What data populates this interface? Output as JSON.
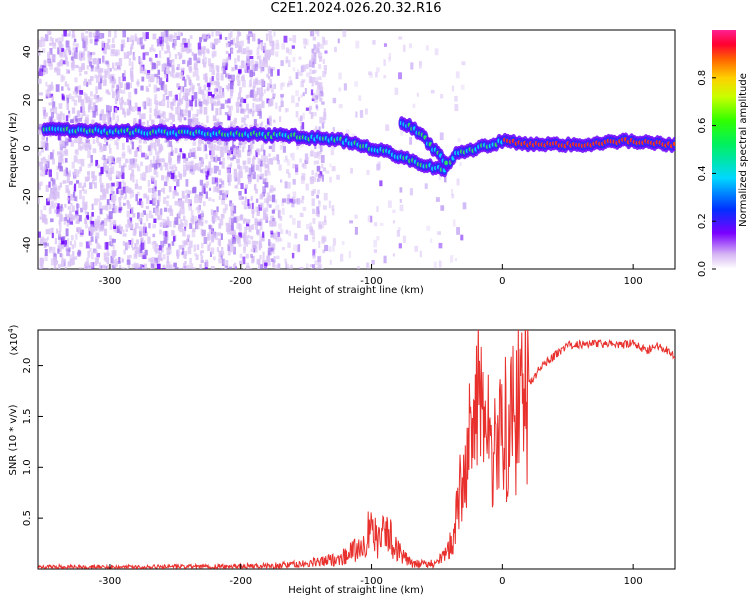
{
  "title": "C2E1.2024.026.20.32.R16",
  "chart_data": [
    {
      "type": "heatmap",
      "xlabel": "Height of straight line (km)",
      "ylabel": "Frequency (Hz)",
      "xlim": [
        -355,
        132
      ],
      "ylim": [
        -50,
        49
      ],
      "xticks": [
        -300,
        -200,
        -100,
        0,
        100
      ],
      "yticks": [
        -40,
        -20,
        0,
        20,
        40
      ],
      "colorbar": {
        "label": "Normalized spectral amplitude",
        "range": [
          0,
          1
        ],
        "ticks": [
          "0.0",
          "0.2",
          "0.4",
          "0.6",
          "0.8"
        ]
      },
      "ridge": {
        "x": [
          -350,
          -300,
          -250,
          -200,
          -160,
          -120,
          -100,
          -80,
          -60,
          -45,
          -35,
          -20,
          -5,
          0,
          20,
          60,
          95,
          132
        ],
        "y": [
          8,
          7,
          6.5,
          6,
          5,
          3,
          0,
          -3,
          -7,
          -9,
          -2,
          0,
          2,
          3,
          1.5,
          1.5,
          3,
          1.5
        ]
      },
      "secondary_branch": {
        "x": [
          -77,
          -70,
          -62,
          -55,
          -48,
          -42
        ],
        "y": [
          10,
          9,
          6,
          1,
          -3,
          -6
        ]
      },
      "grid": false
    },
    {
      "type": "line",
      "xlabel": "Height of straight line (km)",
      "ylabel": "SNR (10 * v/v)",
      "exponent_label": "(x10",
      "exponent_value": "4",
      "xlim": [
        -355,
        132
      ],
      "ylim": [
        0,
        2.35
      ],
      "xticks": [
        -300,
        -200,
        -100,
        0,
        100
      ],
      "yticks": [
        "0.5",
        "1.0",
        "1.5",
        "2.0"
      ],
      "color": "#e8302c",
      "series": [
        {
          "x": [
            -355,
            -250,
            -180,
            -150,
            -125,
            -110,
            -105,
            -100,
            -95,
            -90,
            -85,
            -80,
            -75,
            -70,
            -60,
            -50,
            -42,
            -38,
            -35,
            -32,
            -30,
            -28,
            -25,
            -22,
            -20,
            -18,
            -16,
            -14,
            -12,
            -10,
            -8,
            -5,
            0,
            10,
            20,
            30,
            40,
            50,
            70,
            90,
            100,
            110,
            120,
            132
          ],
          "y": [
            0.02,
            0.02,
            0.03,
            0.05,
            0.1,
            0.2,
            0.3,
            0.4,
            0.25,
            0.35,
            0.3,
            0.2,
            0.12,
            0.05,
            0.05,
            0.06,
            0.15,
            0.3,
            0.5,
            0.8,
            1.2,
            0.9,
            1.5,
            1.1,
            1.8,
            2.35,
            1.4,
            1.7,
            1.2,
            1.6,
            1.1,
            1.4,
            1.3,
            1.5,
            1.8,
            2.0,
            2.1,
            2.2,
            2.22,
            2.2,
            2.22,
            2.15,
            2.2,
            2.1
          ]
        }
      ],
      "grid": false
    }
  ]
}
